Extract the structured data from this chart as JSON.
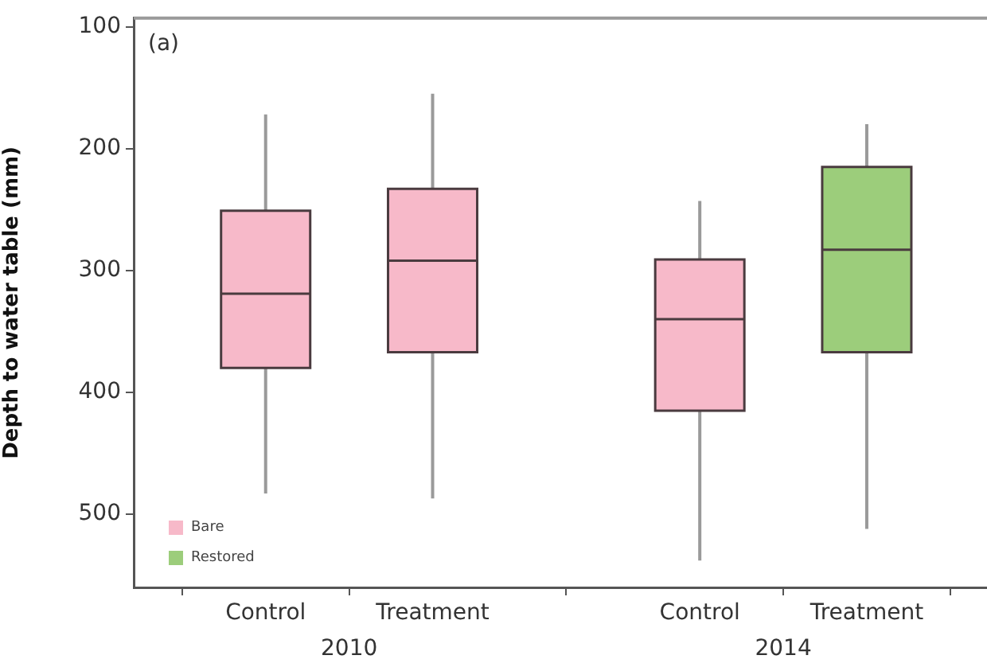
{
  "chart_data": {
    "type": "box",
    "ylabel": "Depth to water table (mm)",
    "categories": [
      "Control",
      "Treatment",
      "Control",
      "Treatment"
    ],
    "series": [
      {
        "name": "Bare",
        "color": "#f7b9c9",
        "boxes": [
          {
            "low": 172,
            "q1": 251,
            "median": 319,
            "q3": 380,
            "high": 483
          },
          {
            "low": 155,
            "q1": 233,
            "median": 292,
            "q3": 367,
            "high": 487
          },
          {
            "low": 243,
            "q1": 291,
            "median": 340,
            "q3": 415,
            "high": 538
          },
          null
        ]
      },
      {
        "name": "Restored",
        "color": "#9ccd7b",
        "boxes": [
          null,
          null,
          null,
          {
            "low": 180,
            "q1": 215,
            "median": 283,
            "q3": 367,
            "high": 512
          }
        ]
      }
    ],
    "ylim": [
      560,
      93
    ],
    "yticks": [
      100,
      200,
      300,
      400,
      500
    ],
    "legend": "bottom left",
    "annotations": [
      "(a)",
      "2010",
      "2014"
    ]
  }
}
